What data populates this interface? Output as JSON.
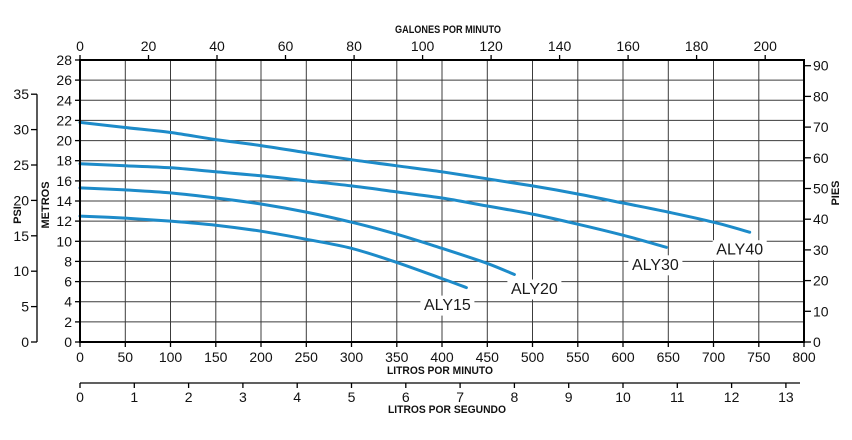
{
  "chart_data": {
    "type": "line",
    "grid": true,
    "line_color": "#1d8bc9",
    "x_axis": {
      "label": "LITROS POR MINUTO",
      "range": [
        0,
        800
      ],
      "ticks": [
        0,
        50,
        100,
        150,
        200,
        250,
        300,
        350,
        400,
        450,
        500,
        550,
        600,
        650,
        700,
        750,
        800
      ]
    },
    "x_axis_top": {
      "label": "GALONES POR MINUTO",
      "ticks": [
        0,
        20,
        40,
        60,
        80,
        100,
        120,
        140,
        160,
        180,
        200
      ]
    },
    "x_axis_bottom_secondary": {
      "label": "LITROS POR SEGUNDO",
      "ticks": [
        0,
        1,
        2,
        3,
        4,
        5,
        6,
        7,
        8,
        9,
        10,
        11,
        12,
        13
      ]
    },
    "y_axis": {
      "label": "METROS",
      "range": [
        0,
        28
      ],
      "ticks": [
        0,
        2,
        4,
        6,
        8,
        10,
        12,
        14,
        16,
        18,
        20,
        22,
        24,
        26,
        28
      ]
    },
    "y_axis_left_secondary": {
      "label": "PSI",
      "ticks": [
        0,
        5,
        10,
        15,
        20,
        25,
        30,
        35
      ]
    },
    "y_axis_right": {
      "label": "PIES",
      "ticks": [
        0,
        10,
        20,
        30,
        40,
        50,
        60,
        70,
        80,
        90
      ]
    },
    "series": [
      {
        "name": "ALY40",
        "x": [
          0,
          50,
          100,
          150,
          200,
          250,
          300,
          350,
          400,
          450,
          500,
          550,
          600,
          650,
          700,
          740
        ],
        "y": [
          21.8,
          21.3,
          20.8,
          20.1,
          19.5,
          18.8,
          18.1,
          17.5,
          16.9,
          16.2,
          15.5,
          14.7,
          13.8,
          12.9,
          11.9,
          10.9
        ]
      },
      {
        "name": "ALY30",
        "x": [
          0,
          50,
          100,
          150,
          200,
          250,
          300,
          350,
          400,
          450,
          500,
          550,
          600,
          648
        ],
        "y": [
          17.7,
          17.5,
          17.3,
          16.9,
          16.5,
          16.0,
          15.5,
          14.9,
          14.3,
          13.5,
          12.7,
          11.7,
          10.6,
          9.4
        ]
      },
      {
        "name": "ALY20",
        "x": [
          0,
          50,
          100,
          150,
          200,
          250,
          300,
          350,
          400,
          450,
          480
        ],
        "y": [
          15.3,
          15.1,
          14.8,
          14.3,
          13.7,
          12.9,
          11.9,
          10.7,
          9.3,
          7.8,
          6.7
        ]
      },
      {
        "name": "ALY15",
        "x": [
          0,
          50,
          100,
          150,
          200,
          250,
          300,
          350,
          400,
          427
        ],
        "y": [
          12.5,
          12.3,
          12.0,
          11.6,
          11.0,
          10.2,
          9.3,
          7.9,
          6.3,
          5.4
        ]
      }
    ]
  }
}
